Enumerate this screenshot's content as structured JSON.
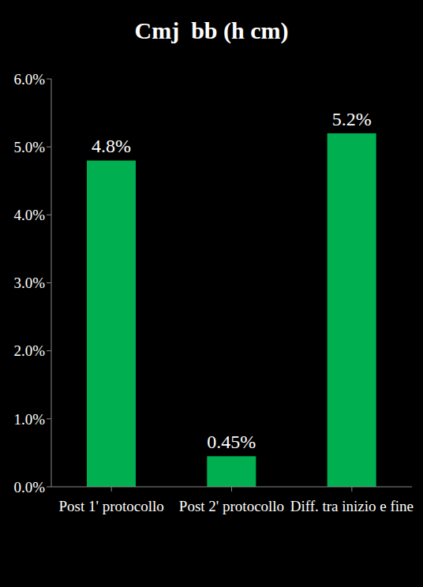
{
  "chart_data": {
    "type": "bar",
    "title": "Cmj  bb (h cm)",
    "categories": [
      "Post 1' protocollo",
      "Post 2' protocollo",
      "Diff. tra inizio e fine"
    ],
    "values": [
      4.8,
      0.45,
      5.2
    ],
    "value_labels": [
      "4.8%",
      "0.45%",
      "5.2%"
    ],
    "data_labels": true,
    "color": "#00b050",
    "ylim": [
      0,
      6
    ],
    "yticks": [
      {
        "value": 0,
        "label": "0.0%"
      },
      {
        "value": 1,
        "label": "1.0%"
      },
      {
        "value": 2,
        "label": "2.0%"
      },
      {
        "value": 3,
        "label": "3.0%"
      },
      {
        "value": 4,
        "label": "4.0%"
      },
      {
        "value": 5,
        "label": "5.0%"
      },
      {
        "value": 6,
        "label": "6.0%"
      }
    ],
    "grid": false
  }
}
